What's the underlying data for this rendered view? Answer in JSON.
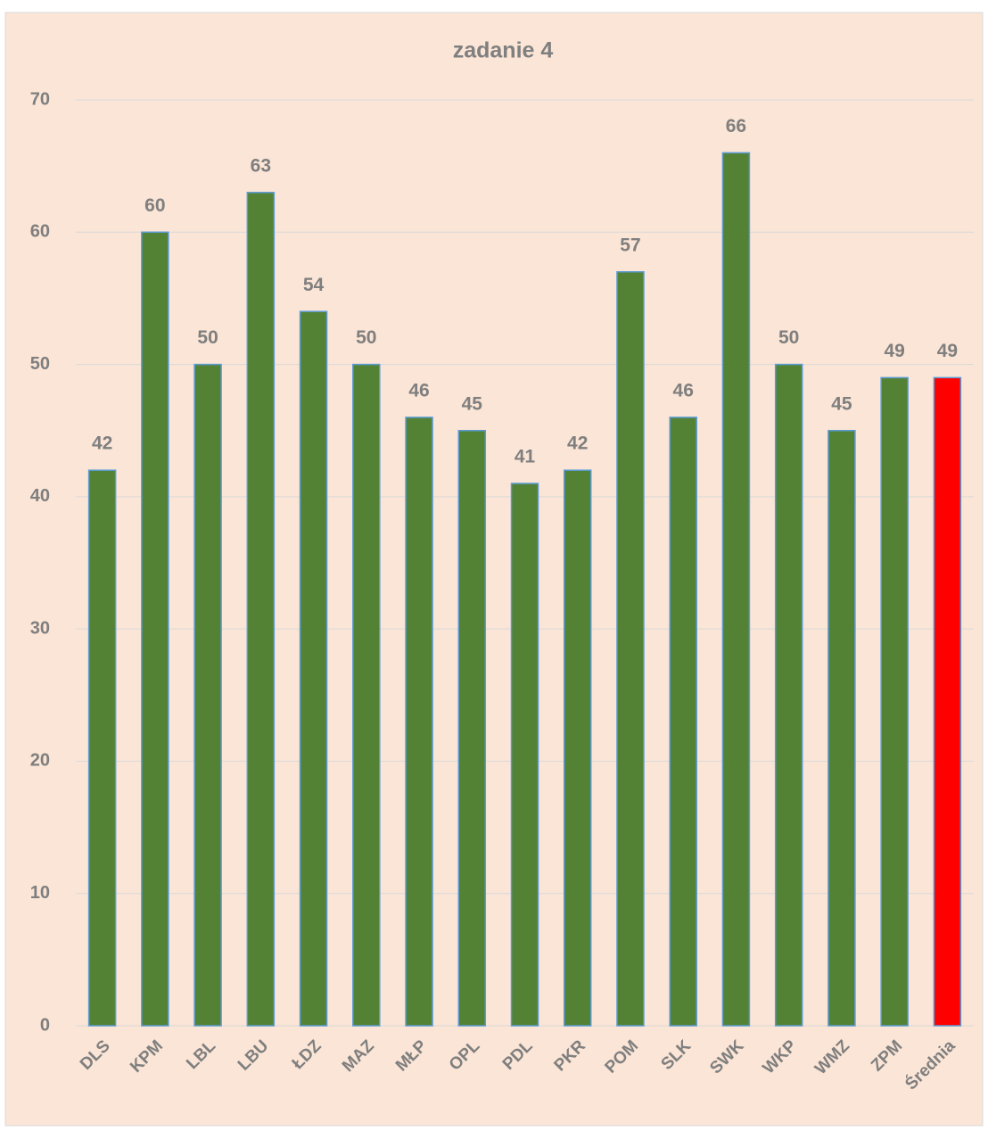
{
  "chart_data": {
    "type": "bar",
    "title": "zadanie 4",
    "categories": [
      "DLS",
      "KPM",
      "LBL",
      "LBU",
      "ŁDZ",
      "MAZ",
      "MŁP",
      "OPL",
      "PDL",
      "PKR",
      "POM",
      "SLK",
      "SWK",
      "WKP",
      "WMZ",
      "ZPM",
      "Średnia"
    ],
    "values": [
      42,
      60,
      50,
      63,
      54,
      50,
      46,
      45,
      41,
      42,
      57,
      46,
      66,
      50,
      45,
      49,
      49
    ],
    "colors": [
      "#548235",
      "#548235",
      "#548235",
      "#548235",
      "#548235",
      "#548235",
      "#548235",
      "#548235",
      "#548235",
      "#548235",
      "#548235",
      "#548235",
      "#548235",
      "#548235",
      "#548235",
      "#548235",
      "#ff0000"
    ],
    "ylim": [
      0,
      70
    ],
    "yticks": [
      0,
      10,
      20,
      30,
      40,
      50,
      60,
      70
    ],
    "grid": true
  }
}
